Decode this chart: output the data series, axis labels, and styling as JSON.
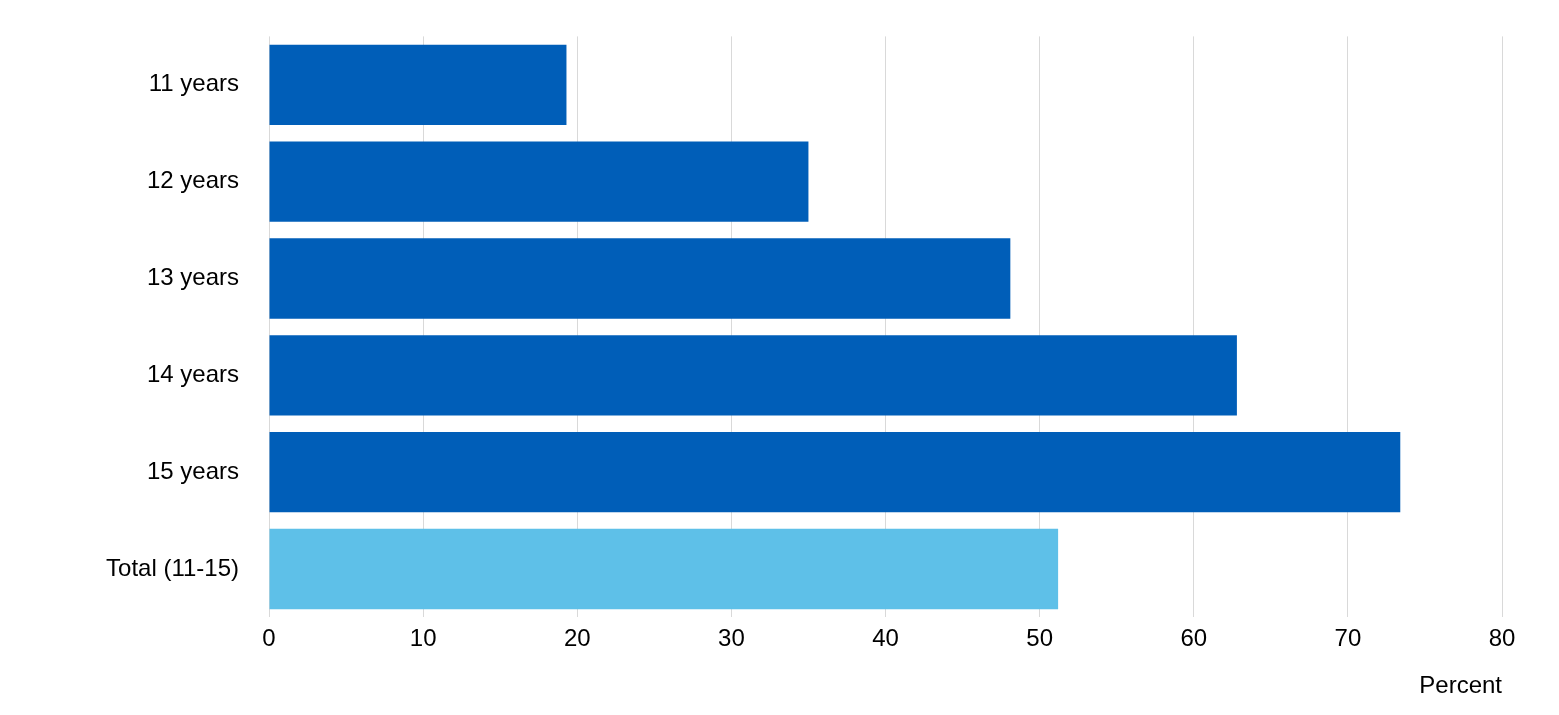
{
  "chart_data": {
    "type": "bar",
    "orientation": "horizontal",
    "xlabel": "Percent",
    "categories": [
      "11 years",
      "12 years",
      "13 years",
      "14 years",
      "15 years",
      "Total (11-15)"
    ],
    "values": [
      19.3,
      35.0,
      48.1,
      62.8,
      73.4,
      51.2
    ],
    "colors": [
      "#005eb8",
      "#005eb8",
      "#005eb8",
      "#005eb8",
      "#005eb8",
      "#5ec0e8"
    ],
    "xlim": [
      0,
      80
    ],
    "xticks": [
      0,
      10,
      20,
      30,
      40,
      50,
      60,
      70,
      80
    ],
    "grid": "x",
    "legend": false
  }
}
